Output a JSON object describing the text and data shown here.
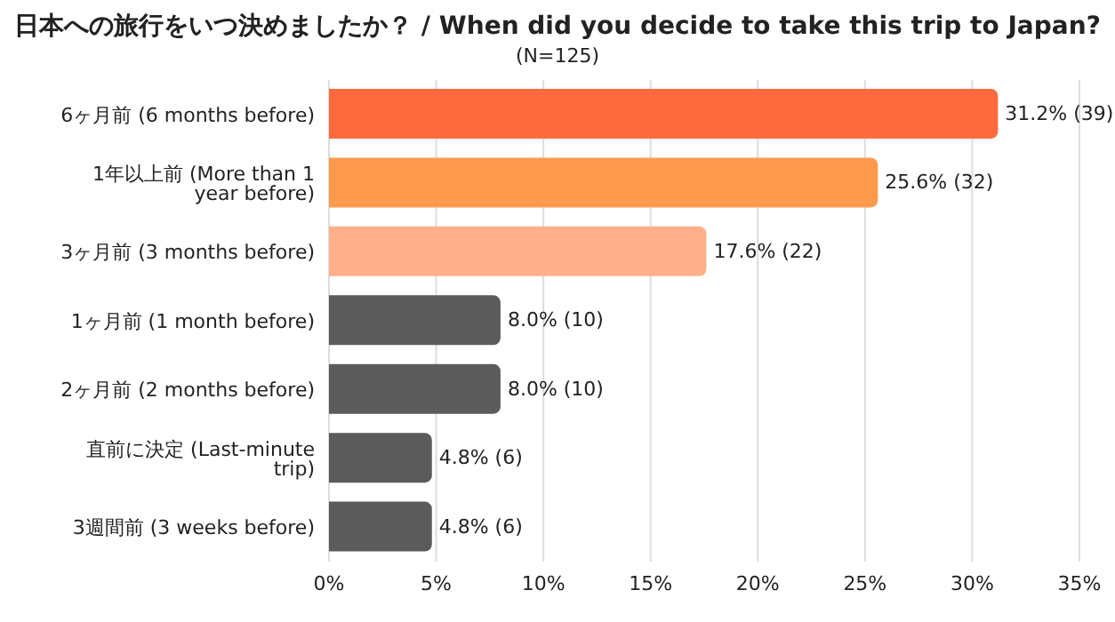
{
  "chart_data": {
    "type": "bar",
    "orientation": "horizontal",
    "title": "日本への旅行をいつ決めましたか？ / When did you decide to take this trip to Japan?",
    "subtitle": "(N=125)",
    "categories": [
      "6ヶ月前 (6 months before)",
      "1年以上前 (More than 1 year before)",
      "3ヶ月前 (3 months before)",
      "1ヶ月前 (1 month before)",
      "2ヶ月前 (2 months before)",
      "直前に決定 (Last-minute trip)",
      "3週間前 (3 weeks before)"
    ],
    "values": [
      31.2,
      25.6,
      17.6,
      8.0,
      8.0,
      4.8,
      4.8
    ],
    "colors": [
      "#ff6a3d",
      "#ff9a4d",
      "#ffb08a",
      "#5b5b5b",
      "#5b5b5b",
      "#5b5b5b",
      "#5b5b5b"
    ],
    "value_labels": [
      "31.2% (39)",
      "25.6% (32)",
      "17.6% (22)",
      "8.0% (10)",
      "8.0% (10)",
      "4.8% (6)",
      "4.8% (6)"
    ],
    "xlim": [
      0,
      35
    ],
    "xticks": [
      {
        "value": 0,
        "label": "0%"
      },
      {
        "value": 5,
        "label": "5%"
      },
      {
        "value": 10,
        "label": "10%"
      },
      {
        "value": 15,
        "label": "15%"
      },
      {
        "value": 20,
        "label": "20%"
      },
      {
        "value": 25,
        "label": "25%"
      },
      {
        "value": 30,
        "label": "30%"
      },
      {
        "value": 35,
        "label": "35%"
      }
    ],
    "grid": "x"
  }
}
